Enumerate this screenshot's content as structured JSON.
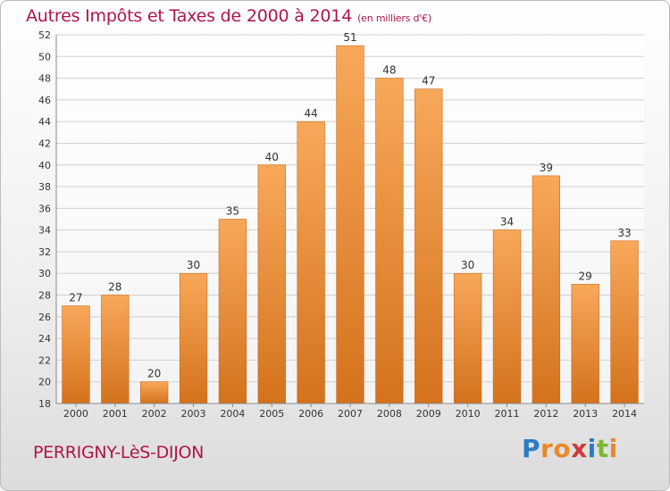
{
  "chart_data": {
    "type": "bar",
    "title": "Autres Impôts et Taxes de 2000 à 2014",
    "subtitle": "(en milliers d'€)",
    "categories": [
      "2000",
      "2001",
      "2002",
      "2003",
      "2004",
      "2005",
      "2006",
      "2007",
      "2008",
      "2009",
      "2010",
      "2011",
      "2012",
      "2013",
      "2014"
    ],
    "values": [
      27,
      28,
      20,
      30,
      35,
      40,
      44,
      51,
      48,
      47,
      30,
      34,
      39,
      29,
      33
    ],
    "ylim": [
      18,
      52
    ],
    "yticks": [
      18,
      20,
      22,
      24,
      26,
      28,
      30,
      32,
      34,
      36,
      38,
      40,
      42,
      44,
      46,
      48,
      50,
      52
    ],
    "grid": true,
    "bar_color": "#e8893a",
    "bar_color_light": "#f8a85a",
    "bar_color_dark": "#d4721c"
  },
  "footer": {
    "town": "PERRIGNY-LèS-DIJON",
    "logo_letters": [
      "P",
      "r",
      "o",
      "x",
      "i",
      "t",
      "i"
    ],
    "logo_colors": [
      "#2c7bc4",
      "#e8892a",
      "#e8892a",
      "#d03a3a",
      "#2c7bc4",
      "#7ab832",
      "#e8892a"
    ]
  }
}
